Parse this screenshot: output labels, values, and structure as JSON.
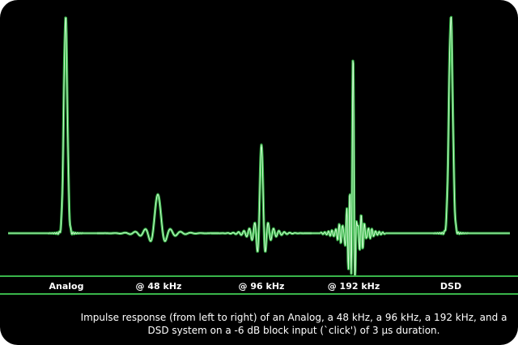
{
  "chart_data": {
    "type": "line",
    "title": "",
    "xlabel": "",
    "ylabel": "",
    "grid": false,
    "categories": [
      "Analog",
      "@ 48 kHz",
      "@ 96 kHz",
      "@ 192 kHz",
      "DSD"
    ],
    "peak_amplitudes": [
      1.0,
      0.18,
      0.41,
      0.8,
      1.0
    ],
    "caption": "Impulse response (from left to right) of an Analog, a 48 kHz, a 96 kHz, a 192 kHz, and a DSD system on a -6 dB block input (`click') of 3 µs duration.",
    "colors": {
      "trace": "#39b54a",
      "trace_highlight": "#d8ffd8",
      "background": "#000000",
      "text": "#ffffff"
    }
  }
}
